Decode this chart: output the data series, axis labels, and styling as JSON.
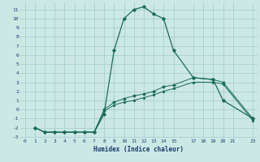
{
  "xlabel": "Humidex (Indice chaleur)",
  "xlim": [
    -0.5,
    23.5
  ],
  "ylim": [
    -3.2,
    11.8
  ],
  "yticks": [
    -3,
    -2,
    -1,
    0,
    1,
    2,
    3,
    4,
    5,
    6,
    7,
    8,
    9,
    10,
    11
  ],
  "xticks": [
    0,
    1,
    2,
    3,
    4,
    5,
    6,
    7,
    8,
    9,
    10,
    11,
    12,
    13,
    14,
    15,
    17,
    18,
    19,
    20,
    21,
    23
  ],
  "background_color": "#cce8e5",
  "grid_color": "#9dccc8",
  "line_color": "#1a6b5a",
  "curve1_x": [
    1,
    2,
    3,
    4,
    5,
    6,
    7,
    8,
    9,
    10,
    11,
    12,
    13,
    14,
    15,
    17,
    19,
    20,
    23
  ],
  "curve1_y": [
    -2,
    -2.5,
    -2.5,
    -2.5,
    -2.5,
    -2.5,
    -2.5,
    -0.5,
    6.5,
    10,
    11,
    11.3,
    10.5,
    10,
    6.5,
    3.5,
    3.3,
    1,
    -1
  ],
  "curve2_x": [
    1,
    2,
    3,
    4,
    5,
    6,
    7,
    8,
    9,
    10,
    11,
    12,
    13,
    14,
    15,
    17,
    19,
    20,
    23
  ],
  "curve2_y": [
    -2,
    -2.5,
    -2.5,
    -2.5,
    -2.5,
    -2.5,
    -2.5,
    0.0,
    0.8,
    1.2,
    1.5,
    1.7,
    2.0,
    2.5,
    2.7,
    3.5,
    3.3,
    3.0,
    -1
  ],
  "curve3_x": [
    1,
    2,
    3,
    4,
    5,
    6,
    7,
    8,
    9,
    10,
    11,
    12,
    13,
    14,
    15,
    17,
    19,
    20,
    23
  ],
  "curve3_y": [
    -2,
    -2.5,
    -2.5,
    -2.5,
    -2.5,
    -2.5,
    -2.5,
    -0.2,
    0.5,
    0.8,
    1.0,
    1.3,
    1.6,
    2.0,
    2.3,
    3.0,
    3.0,
    2.8,
    -1.2
  ]
}
